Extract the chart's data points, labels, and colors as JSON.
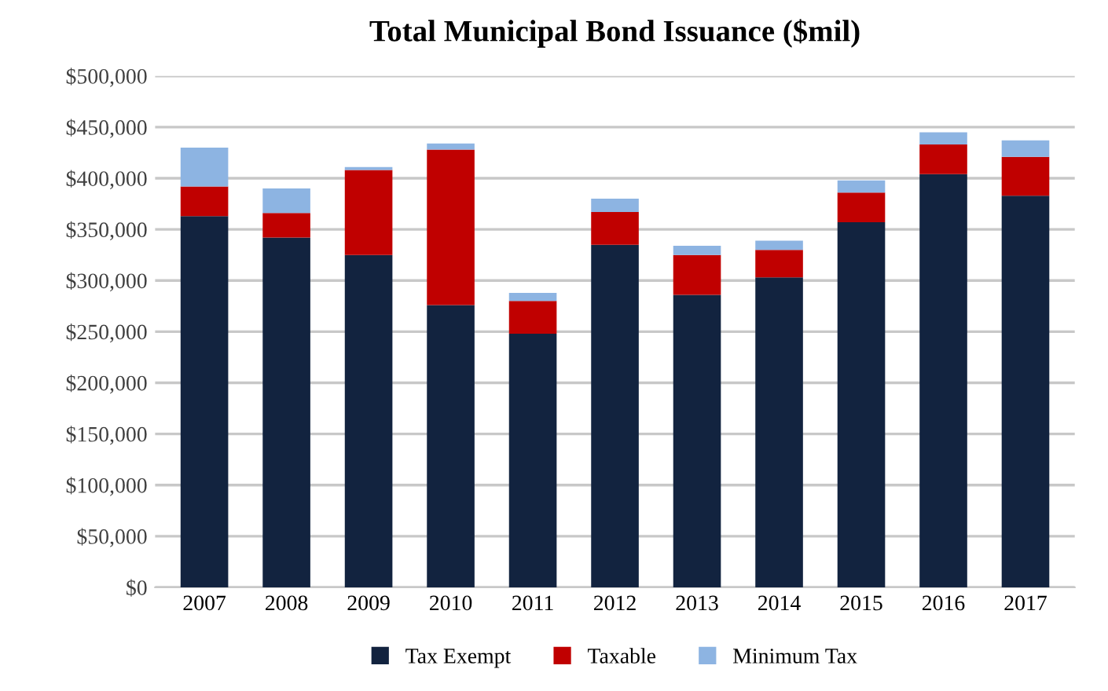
{
  "chart_data": {
    "type": "bar",
    "title": "Total Municipal Bond Issuance ($mil)",
    "stacked": true,
    "grid": "y",
    "legend": "bottom",
    "categories": [
      "2007",
      "2008",
      "2009",
      "2010",
      "2011",
      "2012",
      "2013",
      "2014",
      "2015",
      "2016",
      "2017"
    ],
    "series": [
      {
        "name": "Tax Exempt",
        "color": "#12233f",
        "values": [
          363000,
          342000,
          325000,
          276000,
          248000,
          335000,
          286000,
          303000,
          357000,
          404000,
          383000
        ]
      },
      {
        "name": "Taxable",
        "color": "#c00000",
        "values": [
          29000,
          24000,
          83000,
          152000,
          32000,
          32000,
          39000,
          27000,
          29000,
          29000,
          38000
        ]
      },
      {
        "name": "Minimum Tax",
        "color": "#8db4e2",
        "values": [
          38000,
          24000,
          3000,
          6000,
          8000,
          13000,
          9000,
          9000,
          12000,
          12000,
          16000
        ]
      }
    ],
    "ylim": [
      0,
      500000
    ],
    "yticks": [
      {
        "value": 0,
        "label": "$0"
      },
      {
        "value": 50000,
        "label": "$50,000"
      },
      {
        "value": 100000,
        "label": "$100,000"
      },
      {
        "value": 150000,
        "label": "$150,000"
      },
      {
        "value": 200000,
        "label": "$200,000"
      },
      {
        "value": 250000,
        "label": "$250,000"
      },
      {
        "value": 300000,
        "label": "$300,000"
      },
      {
        "value": 350000,
        "label": "$350,000"
      },
      {
        "value": 400000,
        "label": "$400,000"
      },
      {
        "value": 450000,
        "label": "$450,000"
      },
      {
        "value": 500000,
        "label": "$500,000"
      }
    ]
  }
}
